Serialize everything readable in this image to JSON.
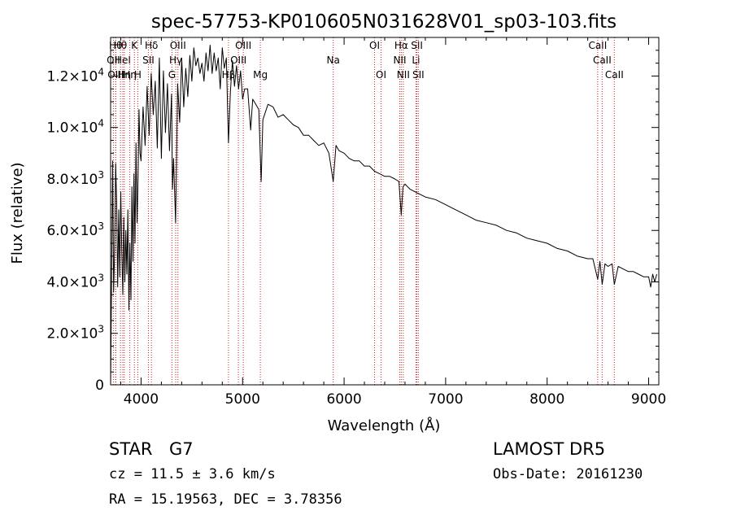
{
  "chart_data": {
    "type": "line",
    "title": "spec-57753-KP010605N031628V01_sp03-103.fits",
    "xlabel": "Wavelength (Å)",
    "ylabel": "Flux (relative)",
    "xlim": [
      3700,
      9100
    ],
    "ylim": [
      0,
      13500
    ],
    "x_ticks": [
      4000,
      5000,
      6000,
      7000,
      8000,
      9000
    ],
    "y_ticks": [
      {
        "value": 0,
        "mant": "0",
        "exp": ""
      },
      {
        "value": 2000,
        "mant": "2.0×10",
        "exp": "3"
      },
      {
        "value": 4000,
        "mant": "4.0×10",
        "exp": "3"
      },
      {
        "value": 6000,
        "mant": "6.0×10",
        "exp": "3"
      },
      {
        "value": 8000,
        "mant": "8.0×10",
        "exp": "3"
      },
      {
        "value": 10000,
        "mant": "1.0×10",
        "exp": "4"
      },
      {
        "value": 12000,
        "mant": "1.2×10",
        "exp": "4"
      }
    ],
    "series": [
      {
        "x": [
          3700,
          3710,
          3720,
          3730,
          3740,
          3750,
          3760,
          3770,
          3780,
          3790,
          3800,
          3810,
          3820,
          3830,
          3840,
          3850,
          3860,
          3870,
          3880,
          3890,
          3900,
          3910,
          3920,
          3930,
          3940,
          3950,
          3960,
          3970,
          3980,
          3990,
          4000,
          4020,
          4040,
          4060,
          4080,
          4100,
          4120,
          4140,
          4160,
          4180,
          4200,
          4220,
          4240,
          4260,
          4280,
          4300,
          4310,
          4320,
          4340,
          4360,
          4380,
          4400,
          4420,
          4440,
          4460,
          4480,
          4500,
          4520,
          4540,
          4560,
          4580,
          4600,
          4620,
          4640,
          4660,
          4680,
          4700,
          4720,
          4740,
          4760,
          4780,
          4800,
          4820,
          4840,
          4861,
          4880,
          4900,
          4920,
          4940,
          4960,
          4980,
          5000,
          5020,
          5050,
          5080,
          5100,
          5130,
          5160,
          5183,
          5200,
          5250,
          5300,
          5350,
          5400,
          5450,
          5500,
          5550,
          5600,
          5650,
          5700,
          5750,
          5800,
          5850,
          5893,
          5920,
          5950,
          6000,
          6050,
          6100,
          6150,
          6200,
          6250,
          6300,
          6350,
          6400,
          6450,
          6500,
          6540,
          6563,
          6580,
          6600,
          6650,
          6700,
          6750,
          6800,
          6900,
          7000,
          7100,
          7200,
          7300,
          7400,
          7500,
          7600,
          7700,
          7800,
          7900,
          8000,
          8100,
          8200,
          8300,
          8400,
          8450,
          8498,
          8520,
          8542,
          8570,
          8600,
          8640,
          8662,
          8700,
          8750,
          8800,
          8850,
          8900,
          8950,
          9000,
          9020,
          9040,
          9060,
          9080
        ],
        "y": [
          0,
          4200,
          8700,
          3600,
          5300,
          8600,
          7000,
          3800,
          6800,
          4200,
          7500,
          5200,
          3500,
          6500,
          4000,
          6000,
          4300,
          6800,
          2900,
          5500,
          3300,
          7700,
          4800,
          8200,
          5500,
          9400,
          6300,
          8000,
          10700,
          9000,
          8700,
          10800,
          9300,
          11600,
          9700,
          12100,
          10500,
          11800,
          9200,
          12700,
          8800,
          12200,
          9800,
          11700,
          9100,
          11300,
          7600,
          8800,
          6300,
          11700,
          10200,
          12700,
          10800,
          12300,
          11200,
          12800,
          11800,
          13100,
          12400,
          12700,
          12100,
          12500,
          11800,
          12900,
          12200,
          13200,
          12100,
          12900,
          12200,
          12700,
          11500,
          13100,
          12300,
          12700,
          9400,
          11400,
          12600,
          11600,
          12400,
          11500,
          12200,
          11100,
          11500,
          11500,
          9900,
          11100,
          10900,
          10700,
          7900,
          10300,
          10900,
          10800,
          10400,
          10500,
          10300,
          10100,
          10000,
          9700,
          9700,
          9500,
          9300,
          9400,
          9000,
          7900,
          9300,
          9100,
          9000,
          8800,
          8700,
          8700,
          8500,
          8500,
          8300,
          8200,
          8100,
          8100,
          8000,
          7900,
          6600,
          7700,
          7800,
          7600,
          7500,
          7400,
          7300,
          7200,
          7000,
          6800,
          6600,
          6400,
          6300,
          6200,
          6000,
          5900,
          5700,
          5600,
          5500,
          5300,
          5200,
          5000,
          4900,
          4900,
          4100,
          4800,
          3900,
          4700,
          4600,
          4700,
          3900,
          4600,
          4500,
          4400,
          4400,
          4300,
          4200,
          4200,
          3800,
          4300,
          4000,
          4300
        ]
      }
    ],
    "lines": [
      {
        "x": 3750,
        "label": "Hθ",
        "row": 0
      },
      {
        "x": 3727,
        "label": "OII",
        "row": 1
      },
      {
        "x": 3750,
        "label": "OIII",
        "row": 2
      },
      {
        "x": 3797,
        "label": "Hθ",
        "row": 0
      },
      {
        "x": 3820,
        "label": "HeI",
        "row": 1
      },
      {
        "x": 3835,
        "label": "Hη",
        "row": 2
      },
      {
        "x": 3889,
        "label": "Hη",
        "row": 2
      },
      {
        "x": 3934,
        "label": "K",
        "row": 0
      },
      {
        "x": 3968,
        "label": "H",
        "row": 2
      },
      {
        "x": 4072,
        "label": "SII",
        "row": 1
      },
      {
        "x": 4102,
        "label": "Hδ",
        "row": 0
      },
      {
        "x": 4304,
        "label": "G",
        "row": 2
      },
      {
        "x": 4341,
        "label": "Hγ",
        "row": 1
      },
      {
        "x": 4363,
        "label": "OIII",
        "row": 0
      },
      {
        "x": 4861,
        "label": "Hβ",
        "row": 2
      },
      {
        "x": 4959,
        "label": "OIII",
        "row": 1
      },
      {
        "x": 5007,
        "label": "OIII",
        "row": 0
      },
      {
        "x": 5175,
        "label": "Mg",
        "row": 2
      },
      {
        "x": 5893,
        "label": "Na",
        "row": 1
      },
      {
        "x": 6300,
        "label": "OI",
        "row": 0
      },
      {
        "x": 6364,
        "label": "OI",
        "row": 2
      },
      {
        "x": 6548,
        "label": "NII",
        "row": 1
      },
      {
        "x": 6563,
        "label": "Hα",
        "row": 0
      },
      {
        "x": 6583,
        "label": "NII",
        "row": 2
      },
      {
        "x": 6708,
        "label": "Li",
        "row": 1
      },
      {
        "x": 6717,
        "label": "SII",
        "row": 0
      },
      {
        "x": 6731,
        "label": "SII",
        "row": 2
      },
      {
        "x": 8498,
        "label": "CaII",
        "row": 0
      },
      {
        "x": 8542,
        "label": "CaII",
        "row": 1
      },
      {
        "x": 8662,
        "label": "CaII",
        "row": 2
      }
    ],
    "grid": false
  },
  "info": {
    "class": "STAR",
    "subclass": "G7",
    "cz": "cz = 11.5 ± 3.6 km/s",
    "coords": "RA =  15.19563, DEC =   3.78356",
    "survey": "LAMOST DR5",
    "obs_date": "Obs-Date: 20161230"
  },
  "colors": {
    "line_marker": "#d02020",
    "spectrum": "#000000"
  }
}
